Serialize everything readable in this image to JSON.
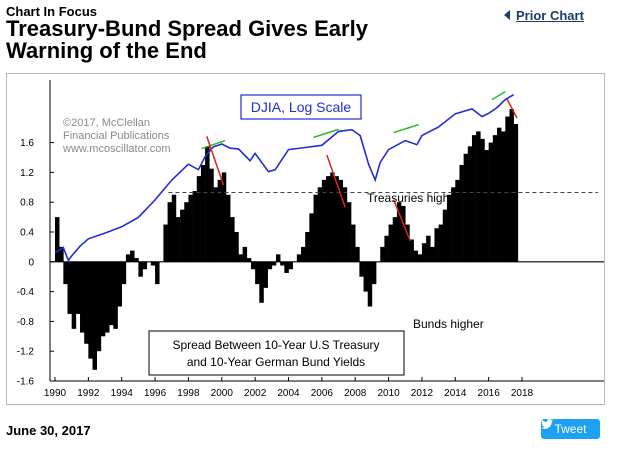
{
  "header": {
    "kicker": "Chart In Focus",
    "title": "Treasury-Bund Spread Gives Early Warning of the End",
    "prior_chart": "Prior Chart"
  },
  "footer": {
    "date": "June 30, 2017",
    "tweet": "Tweet"
  },
  "chart_data": {
    "type": "area",
    "copyright": [
      "©2017, McClellan",
      "Financial Publications",
      "www.mcoscillator.com"
    ],
    "djia_label": "DJIA, Log Scale",
    "spread_box": [
      "Spread Between 10-Year U.S Treasury",
      "and 10-Year German Bund Yields"
    ],
    "annotations": [
      "Treasuries higher",
      "Bunds higher"
    ],
    "x_ticks": [
      "1990",
      "1992",
      "1994",
      "1996",
      "1998",
      "2000",
      "2002",
      "2004",
      "2006",
      "2008",
      "2010",
      "2012",
      "2014",
      "2016",
      "2018"
    ],
    "y_ticks": [
      "1.6",
      "1.2",
      "0.8",
      "0.4",
      "0",
      "-0.4",
      "-0.8",
      "-1.2",
      "-1.6"
    ],
    "ylim": [
      -1.6,
      2.4
    ],
    "reference_line": 0.93,
    "spread_series": {
      "name": "Spread Between 10-Year U.S Treasury and 10-Year German Bund Yields",
      "x": [
        1990.0,
        1990.25,
        1990.5,
        1990.75,
        1991.0,
        1991.25,
        1991.5,
        1991.75,
        1992.0,
        1992.25,
        1992.5,
        1992.75,
        1993.0,
        1993.25,
        1993.5,
        1993.75,
        1994.0,
        1994.25,
        1994.5,
        1994.75,
        1995.0,
        1995.25,
        1995.5,
        1995.75,
        1996.0,
        1996.25,
        1996.5,
        1996.75,
        1997.0,
        1997.25,
        1997.5,
        1997.75,
        1998.0,
        1998.25,
        1998.5,
        1998.75,
        1999.0,
        1999.25,
        1999.5,
        1999.75,
        2000.0,
        2000.25,
        2000.5,
        2000.75,
        2001.0,
        2001.25,
        2001.5,
        2001.75,
        2002.0,
        2002.25,
        2002.5,
        2002.75,
        2003.0,
        2003.25,
        2003.5,
        2003.75,
        2004.0,
        2004.25,
        2004.5,
        2004.75,
        2005.0,
        2005.25,
        2005.5,
        2005.75,
        2006.0,
        2006.25,
        2006.5,
        2006.75,
        2007.0,
        2007.25,
        2007.5,
        2007.75,
        2008.0,
        2008.25,
        2008.5,
        2008.75,
        2009.0,
        2009.25,
        2009.5,
        2009.75,
        2010.0,
        2010.25,
        2010.5,
        2010.75,
        2011.0,
        2011.25,
        2011.5,
        2011.75,
        2012.0,
        2012.25,
        2012.5,
        2012.75,
        2013.0,
        2013.25,
        2013.5,
        2013.75,
        2014.0,
        2014.25,
        2014.5,
        2014.75,
        2015.0,
        2015.25,
        2015.5,
        2015.75,
        2016.0,
        2016.25,
        2016.5,
        2016.75,
        2017.0,
        2017.25,
        2017.5
      ],
      "values": [
        0.6,
        0.2,
        -0.3,
        -0.7,
        -0.9,
        -0.7,
        -0.95,
        -1.1,
        -1.3,
        -1.45,
        -1.2,
        -1.0,
        -0.95,
        -0.85,
        -0.9,
        -0.6,
        -0.3,
        0.1,
        0.15,
        0.05,
        -0.2,
        -0.1,
        0.0,
        -0.05,
        -0.3,
        0.0,
        0.5,
        0.8,
        0.9,
        0.6,
        0.7,
        0.8,
        0.9,
        0.95,
        1.15,
        1.3,
        1.55,
        1.25,
        1.0,
        1.1,
        1.2,
        0.9,
        0.6,
        0.4,
        0.1,
        0.2,
        0.05,
        -0.1,
        -0.3,
        -0.55,
        -0.35,
        -0.1,
        -0.05,
        0.1,
        -0.05,
        -0.15,
        -0.1,
        0.0,
        0.1,
        0.2,
        0.4,
        0.65,
        0.9,
        1.0,
        1.1,
        1.15,
        1.2,
        1.15,
        1.1,
        1.0,
        0.8,
        0.5,
        0.2,
        -0.2,
        -0.4,
        -0.6,
        -0.3,
        0.0,
        0.2,
        0.35,
        0.5,
        0.6,
        0.8,
        0.75,
        0.5,
        0.3,
        0.15,
        0.1,
        0.25,
        0.35,
        0.2,
        0.45,
        0.5,
        0.7,
        0.9,
        1.0,
        1.1,
        1.3,
        1.45,
        1.55,
        1.7,
        1.75,
        1.65,
        1.5,
        1.6,
        1.7,
        1.8,
        1.75,
        1.95,
        2.05,
        1.85
      ]
    },
    "djia_series": {
      "name": "DJIA, Log Scale",
      "x": [
        1990.0,
        1990.5,
        1990.8,
        1991.0,
        1991.5,
        1992.0,
        1993.0,
        1994.0,
        1995.0,
        1996.0,
        1997.0,
        1998.0,
        1998.6,
        1999.0,
        1999.5,
        2000.0,
        2000.5,
        2001.0,
        2001.7,
        2002.0,
        2002.8,
        2003.2,
        2004.0,
        2005.0,
        2006.0,
        2007.0,
        2007.8,
        2008.3,
        2008.8,
        2009.2,
        2009.5,
        2010.0,
        2011.0,
        2011.7,
        2012.0,
        2013.0,
        2014.0,
        2015.0,
        2015.6,
        2016.0,
        2016.5,
        2017.0,
        2017.5
      ],
      "values": [
        2700,
        2900,
        2450,
        2600,
        2950,
        3250,
        3500,
        3800,
        4300,
        5400,
        7000,
        8600,
        8000,
        9500,
        10800,
        11200,
        10600,
        10500,
        9000,
        9900,
        7800,
        8000,
        10400,
        10700,
        11000,
        13200,
        13500,
        12500,
        8600,
        7000,
        8800,
        10400,
        11700,
        11100,
        12500,
        14000,
        16600,
        17700,
        16000,
        16700,
        18000,
        20000,
        21300
      ]
    }
  }
}
